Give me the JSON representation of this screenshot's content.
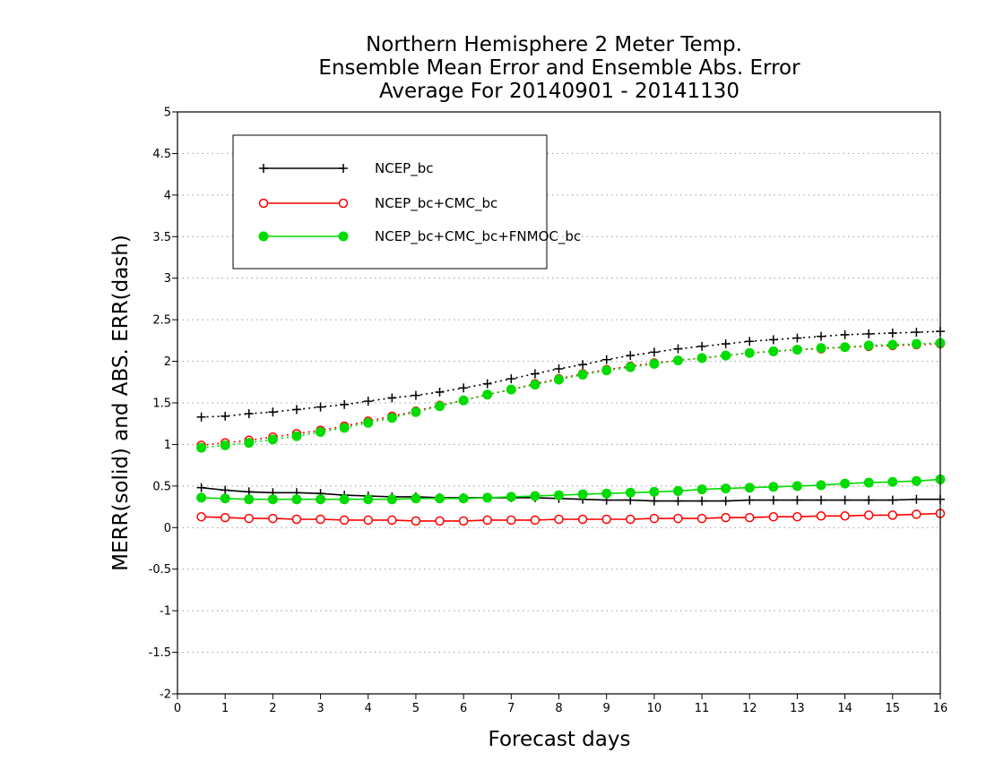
{
  "chart_data": {
    "type": "line",
    "title_lines": [
      "Northern Hemisphere 2 Meter Temp.",
      "Ensemble Mean Error and Ensemble Abs. Error",
      "Average For 20140901 - 20141130"
    ],
    "xlabel": "Forecast days",
    "ylabel": "MERR(solid) and ABS. ERR(dash)",
    "xlim": [
      0,
      16
    ],
    "ylim": [
      -2,
      5
    ],
    "x_ticks": [
      "0",
      "1",
      "2",
      "3",
      "4",
      "5",
      "6",
      "7",
      "8",
      "9",
      "10",
      "11",
      "12",
      "13",
      "14",
      "15",
      "16"
    ],
    "y_ticks": [
      "-2",
      "-1.5",
      "-1",
      "-0.5",
      "0",
      "0.5",
      "1",
      "1.5",
      "2",
      "2.5",
      "3",
      "3.5",
      "4",
      "4.5",
      "5"
    ],
    "grid": "horizontal dotted",
    "legend_position": "top-left",
    "x": [
      0.5,
      1,
      1.5,
      2,
      2.5,
      3,
      3.5,
      4,
      4.5,
      5,
      5.5,
      6,
      6.5,
      7,
      7.5,
      8,
      8.5,
      9,
      9.5,
      10,
      10.5,
      11,
      11.5,
      12,
      12.5,
      13,
      13.5,
      14,
      14.5,
      15,
      15.5,
      16
    ],
    "series": [
      {
        "name": "NCEP_bc",
        "color": "#000000",
        "marker": "plus",
        "merr": [
          0.48,
          0.45,
          0.43,
          0.42,
          0.42,
          0.41,
          0.39,
          0.38,
          0.37,
          0.37,
          0.36,
          0.36,
          0.36,
          0.36,
          0.36,
          0.35,
          0.34,
          0.33,
          0.33,
          0.32,
          0.32,
          0.32,
          0.32,
          0.33,
          0.33,
          0.33,
          0.33,
          0.33,
          0.33,
          0.33,
          0.34,
          0.34
        ],
        "abs_err": [
          1.33,
          1.34,
          1.37,
          1.39,
          1.42,
          1.45,
          1.48,
          1.52,
          1.56,
          1.59,
          1.63,
          1.68,
          1.73,
          1.79,
          1.85,
          1.91,
          1.96,
          2.02,
          2.07,
          2.11,
          2.15,
          2.18,
          2.21,
          2.24,
          2.26,
          2.28,
          2.3,
          2.32,
          2.33,
          2.34,
          2.35,
          2.36
        ]
      },
      {
        "name": "NCEP_bc+CMC_bc",
        "color": "#ff0000",
        "marker": "open-circle",
        "merr": [
          0.13,
          0.12,
          0.11,
          0.11,
          0.1,
          0.1,
          0.09,
          0.09,
          0.09,
          0.08,
          0.08,
          0.08,
          0.09,
          0.09,
          0.09,
          0.1,
          0.1,
          0.1,
          0.1,
          0.11,
          0.11,
          0.11,
          0.12,
          0.12,
          0.13,
          0.13,
          0.14,
          0.14,
          0.15,
          0.15,
          0.16,
          0.17
        ],
        "abs_err": [
          0.99,
          1.02,
          1.05,
          1.09,
          1.13,
          1.17,
          1.22,
          1.28,
          1.34,
          1.4,
          1.47,
          1.53,
          1.6,
          1.66,
          1.73,
          1.79,
          1.85,
          1.9,
          1.94,
          1.98,
          2.01,
          2.04,
          2.07,
          2.1,
          2.12,
          2.14,
          2.15,
          2.17,
          2.18,
          2.19,
          2.2,
          2.21
        ]
      },
      {
        "name": "NCEP_bc+CMC_bc+FNMOC_bc",
        "color": "#00dc00",
        "marker": "filled-circle",
        "merr": [
          0.36,
          0.35,
          0.34,
          0.34,
          0.34,
          0.34,
          0.34,
          0.34,
          0.34,
          0.35,
          0.35,
          0.35,
          0.36,
          0.37,
          0.38,
          0.39,
          0.4,
          0.41,
          0.42,
          0.43,
          0.44,
          0.46,
          0.47,
          0.48,
          0.49,
          0.5,
          0.51,
          0.53,
          0.54,
          0.55,
          0.56,
          0.58
        ],
        "abs_err": [
          0.96,
          0.99,
          1.02,
          1.06,
          1.1,
          1.15,
          1.2,
          1.26,
          1.32,
          1.39,
          1.46,
          1.53,
          1.6,
          1.66,
          1.72,
          1.78,
          1.84,
          1.89,
          1.93,
          1.97,
          2.01,
          2.04,
          2.07,
          2.1,
          2.12,
          2.14,
          2.16,
          2.17,
          2.19,
          2.2,
          2.21,
          2.22
        ]
      }
    ]
  }
}
